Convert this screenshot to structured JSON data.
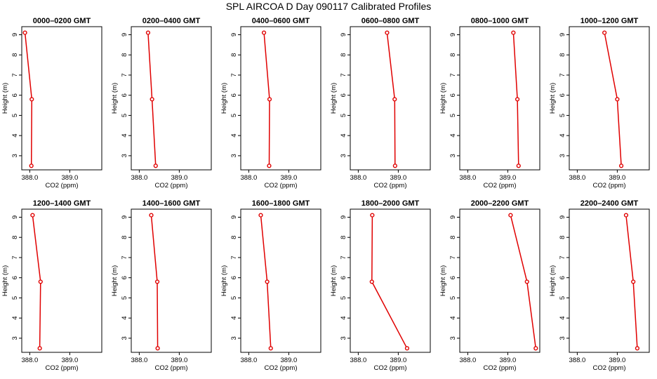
{
  "figure_title": "SPL AIRCOA D  Day 090117  Calibrated Profiles",
  "colors": {
    "line": "#e00000",
    "axes": "#000000",
    "background": "#ffffff"
  },
  "chart_data": [
    {
      "type": "line",
      "title": "0000–0200 GMT",
      "xlabel": "CO2 (ppm)",
      "ylabel": "Height (m)",
      "xlim": [
        387.8,
        389.8
      ],
      "ylim": [
        2.3,
        9.4
      ],
      "xticks": [
        "388.0",
        "389.0"
      ],
      "yticks": [
        "3",
        "4",
        "5",
        "6",
        "7",
        "8",
        "9"
      ],
      "x": [
        387.88,
        388.05,
        388.04
      ],
      "y": [
        9.1,
        5.8,
        2.5
      ]
    },
    {
      "type": "line",
      "title": "0200–0400 GMT",
      "xlabel": "CO2 (ppm)",
      "ylabel": "Height (m)",
      "xlim": [
        387.8,
        389.8
      ],
      "ylim": [
        2.3,
        9.4
      ],
      "xticks": [
        "388.0",
        "389.0"
      ],
      "yticks": [
        "3",
        "4",
        "5",
        "6",
        "7",
        "8",
        "9"
      ],
      "x": [
        388.22,
        388.32,
        388.41
      ],
      "y": [
        9.1,
        5.8,
        2.5
      ]
    },
    {
      "type": "line",
      "title": "0400–0600 GMT",
      "xlabel": "CO2 (ppm)",
      "ylabel": "Height (m)",
      "xlim": [
        387.8,
        389.8
      ],
      "ylim": [
        2.3,
        9.4
      ],
      "xticks": [
        "388.0",
        "389.0"
      ],
      "yticks": [
        "3",
        "4",
        "5",
        "6",
        "7",
        "8",
        "9"
      ],
      "x": [
        388.38,
        388.52,
        388.51
      ],
      "y": [
        9.1,
        5.8,
        2.5
      ]
    },
    {
      "type": "line",
      "title": "0600–0800 GMT",
      "xlabel": "CO2 (ppm)",
      "ylabel": "Height (m)",
      "xlim": [
        387.8,
        389.8
      ],
      "ylim": [
        2.3,
        9.4
      ],
      "xticks": [
        "388.0",
        "389.0"
      ],
      "yticks": [
        "3",
        "4",
        "5",
        "6",
        "7",
        "8",
        "9"
      ],
      "x": [
        388.72,
        388.91,
        388.92
      ],
      "y": [
        9.1,
        5.8,
        2.5
      ]
    },
    {
      "type": "line",
      "title": "0800–1000 GMT",
      "xlabel": "CO2 (ppm)",
      "ylabel": "Height (m)",
      "xlim": [
        387.8,
        389.8
      ],
      "ylim": [
        2.3,
        9.4
      ],
      "xticks": [
        "388.0",
        "389.0"
      ],
      "yticks": [
        "3",
        "4",
        "5",
        "6",
        "7",
        "8",
        "9"
      ],
      "x": [
        389.14,
        389.24,
        389.27
      ],
      "y": [
        9.1,
        5.8,
        2.5
      ]
    },
    {
      "type": "line",
      "title": "1000–1200 GMT",
      "xlabel": "CO2 (ppm)",
      "ylabel": "Height (m)",
      "xlim": [
        387.8,
        389.8
      ],
      "ylim": [
        2.3,
        9.4
      ],
      "xticks": [
        "388.0",
        "389.0"
      ],
      "yticks": [
        "3",
        "4",
        "5",
        "6",
        "7",
        "8",
        "9"
      ],
      "x": [
        388.68,
        389.0,
        389.1
      ],
      "y": [
        9.1,
        5.8,
        2.5
      ]
    },
    {
      "type": "line",
      "title": "1200–1400 GMT",
      "xlabel": "CO2 (ppm)",
      "ylabel": "Height (m)",
      "xlim": [
        387.8,
        389.8
      ],
      "ylim": [
        2.3,
        9.4
      ],
      "xticks": [
        "388.0",
        "389.0"
      ],
      "yticks": [
        "3",
        "4",
        "5",
        "6",
        "7",
        "8",
        "9"
      ],
      "x": [
        388.07,
        388.27,
        388.25
      ],
      "y": [
        9.1,
        5.8,
        2.5
      ]
    },
    {
      "type": "line",
      "title": "1400–1600 GMT",
      "xlabel": "CO2 (ppm)",
      "ylabel": "Height (m)",
      "xlim": [
        387.8,
        389.8
      ],
      "ylim": [
        2.3,
        9.4
      ],
      "xticks": [
        "388.0",
        "389.0"
      ],
      "yticks": [
        "3",
        "4",
        "5",
        "6",
        "7",
        "8",
        "9"
      ],
      "x": [
        388.3,
        388.45,
        388.46
      ],
      "y": [
        9.1,
        5.8,
        2.5
      ]
    },
    {
      "type": "line",
      "title": "1600–1800 GMT",
      "xlabel": "CO2 (ppm)",
      "ylabel": "Height (m)",
      "xlim": [
        387.8,
        389.8
      ],
      "ylim": [
        2.3,
        9.4
      ],
      "xticks": [
        "388.0",
        "389.0"
      ],
      "yticks": [
        "3",
        "4",
        "5",
        "6",
        "7",
        "8",
        "9"
      ],
      "x": [
        388.3,
        388.46,
        388.55
      ],
      "y": [
        9.1,
        5.8,
        2.5
      ]
    },
    {
      "type": "line",
      "title": "1800–2000 GMT",
      "xlabel": "CO2 (ppm)",
      "ylabel": "Height (m)",
      "xlim": [
        387.8,
        389.8
      ],
      "ylim": [
        2.3,
        9.4
      ],
      "xticks": [
        "388.0",
        "389.0"
      ],
      "yticks": [
        "3",
        "4",
        "5",
        "6",
        "7",
        "8",
        "9"
      ],
      "x": [
        388.35,
        388.34,
        389.22
      ],
      "y": [
        9.1,
        5.8,
        2.5
      ]
    },
    {
      "type": "line",
      "title": "2000–2200 GMT",
      "xlabel": "CO2 (ppm)",
      "ylabel": "Height (m)",
      "xlim": [
        387.8,
        389.8
      ],
      "ylim": [
        2.3,
        9.4
      ],
      "xticks": [
        "388.0",
        "389.0"
      ],
      "yticks": [
        "3",
        "4",
        "5",
        "6",
        "7",
        "8",
        "9"
      ],
      "x": [
        389.07,
        389.48,
        389.7
      ],
      "y": [
        9.1,
        5.8,
        2.5
      ]
    },
    {
      "type": "line",
      "title": "2200–2400 GMT",
      "xlabel": "CO2 (ppm)",
      "ylabel": "Height (m)",
      "xlim": [
        387.8,
        389.8
      ],
      "ylim": [
        2.3,
        9.4
      ],
      "xticks": [
        "388.0",
        "389.0"
      ],
      "yticks": [
        "3",
        "4",
        "5",
        "6",
        "7",
        "8",
        "9"
      ],
      "x": [
        389.22,
        389.4,
        389.5
      ],
      "y": [
        9.1,
        5.8,
        2.5
      ]
    }
  ]
}
